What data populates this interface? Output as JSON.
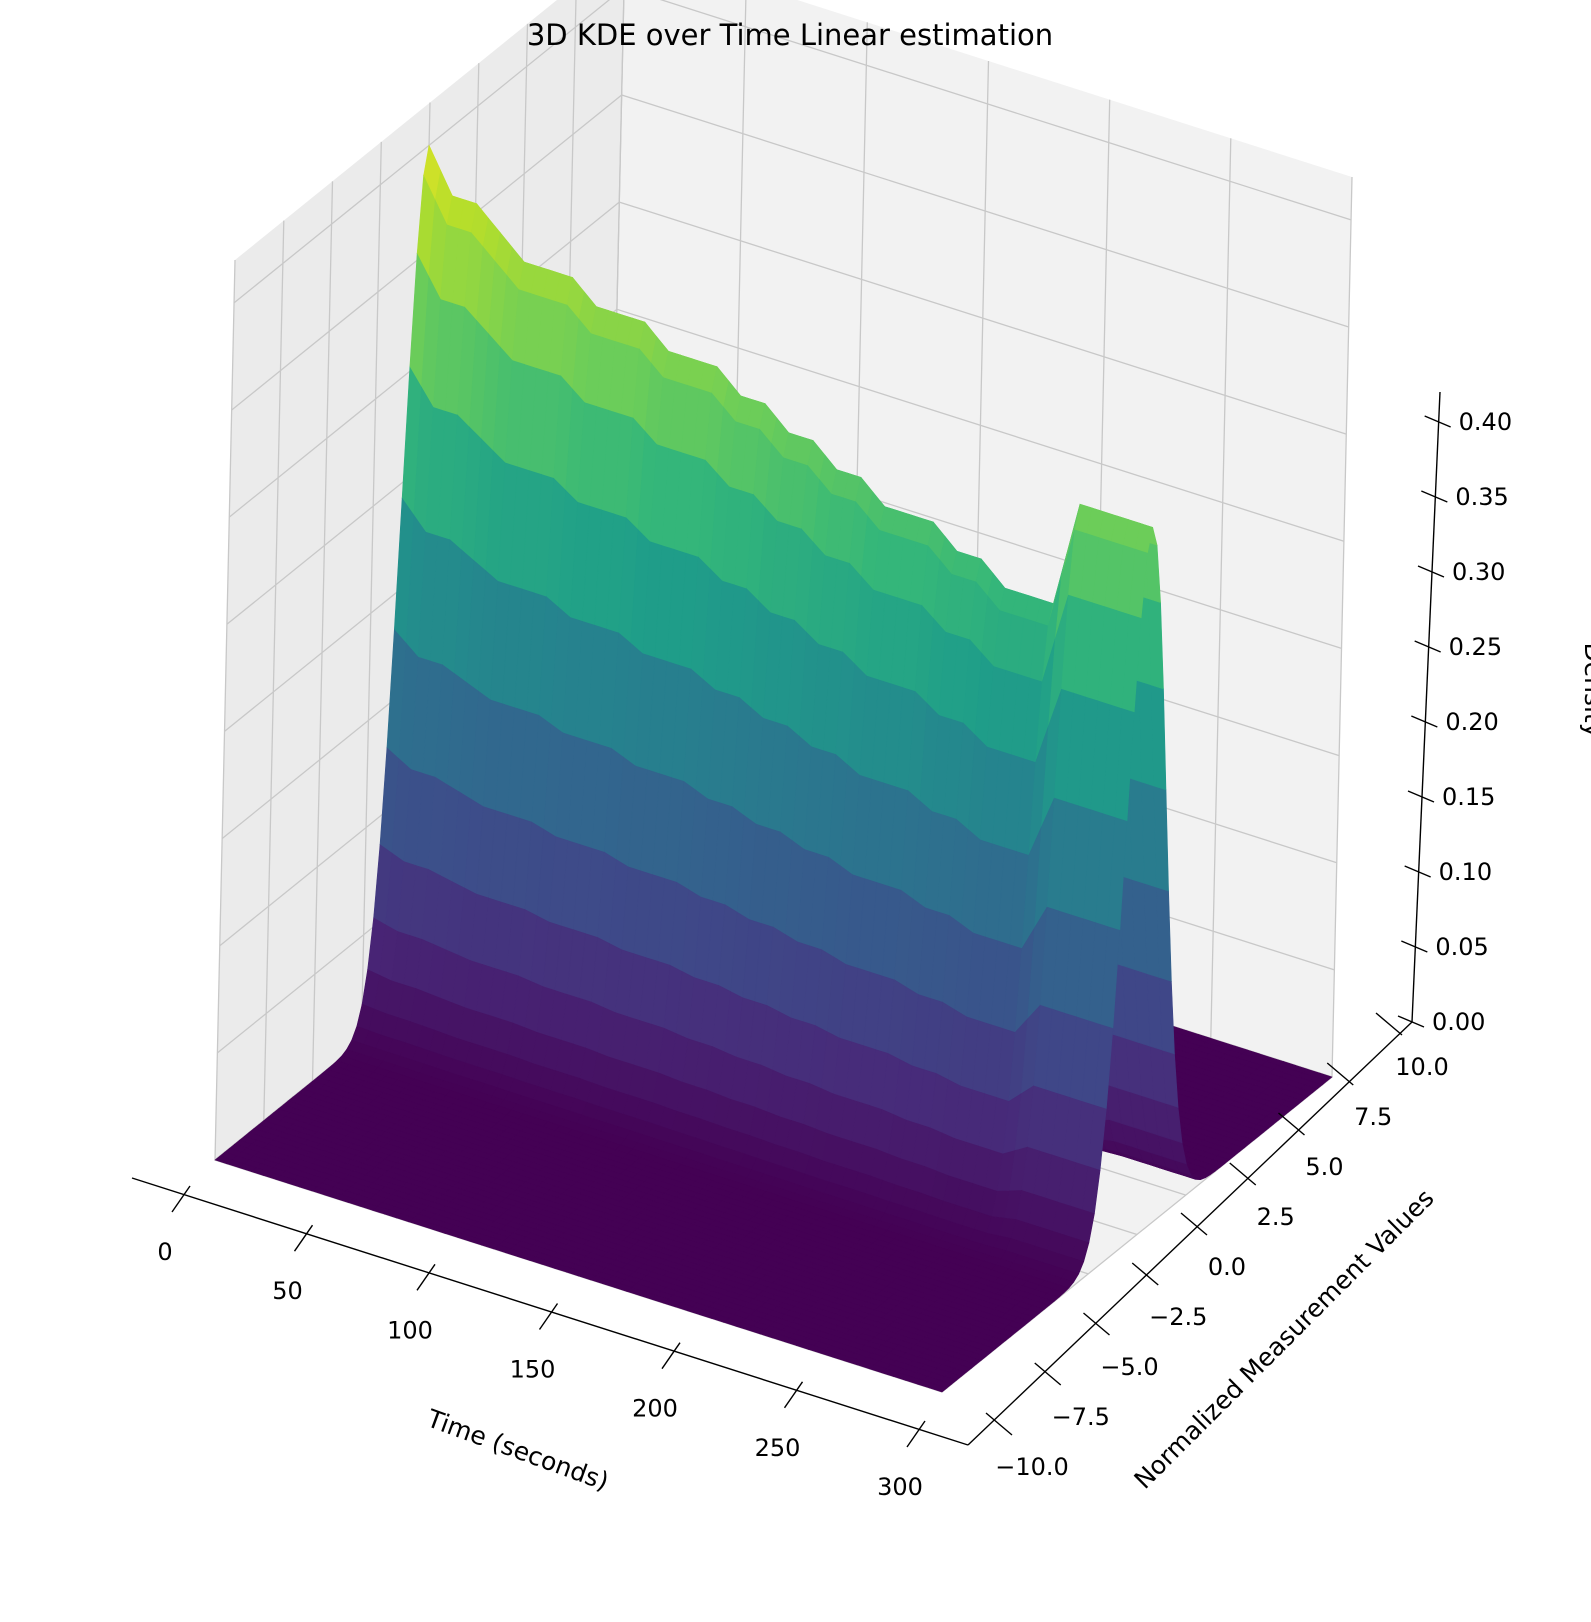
{
  "chart_data": {
    "type": "surface3d",
    "title": "3D KDE over Time Linear estimation",
    "xlabel": "Time (seconds)",
    "ylabel": "Normalized Measurement Values",
    "zlabel": "Density",
    "xlim": [
      0,
      300
    ],
    "ylim": [
      -10,
      10
    ],
    "zlim": [
      0,
      0.42
    ],
    "colormap": "viridis",
    "grid": true,
    "x_ticks": [
      "0",
      "50",
      "100",
      "150",
      "200",
      "250",
      "300"
    ],
    "y_ticks": [
      "−10.0",
      "−7.5",
      "−5.0",
      "−2.5",
      "0.0",
      "2.5",
      "5.0",
      "7.5",
      "10.0"
    ],
    "z_ticks": [
      "0.00",
      "0.05",
      "0.10",
      "0.15",
      "0.20",
      "0.25",
      "0.30",
      "0.35",
      "0.40"
    ],
    "peak_density_profile": {
      "time": [
        0,
        10,
        20,
        30,
        40,
        50,
        60,
        70,
        80,
        90,
        100,
        110,
        120,
        130,
        140,
        150,
        160,
        170,
        180,
        190,
        200,
        210,
        220,
        230,
        240,
        250,
        260,
        270,
        280,
        290,
        300
      ],
      "density": [
        0.4,
        0.38,
        0.38,
        0.37,
        0.36,
        0.36,
        0.36,
        0.35,
        0.35,
        0.35,
        0.34,
        0.34,
        0.34,
        0.33,
        0.33,
        0.32,
        0.32,
        0.31,
        0.31,
        0.3,
        0.3,
        0.3,
        0.29,
        0.29,
        0.28,
        0.28,
        0.28,
        0.33,
        0.33,
        0.33,
        0.33
      ]
    },
    "center_value": 0.0
  }
}
